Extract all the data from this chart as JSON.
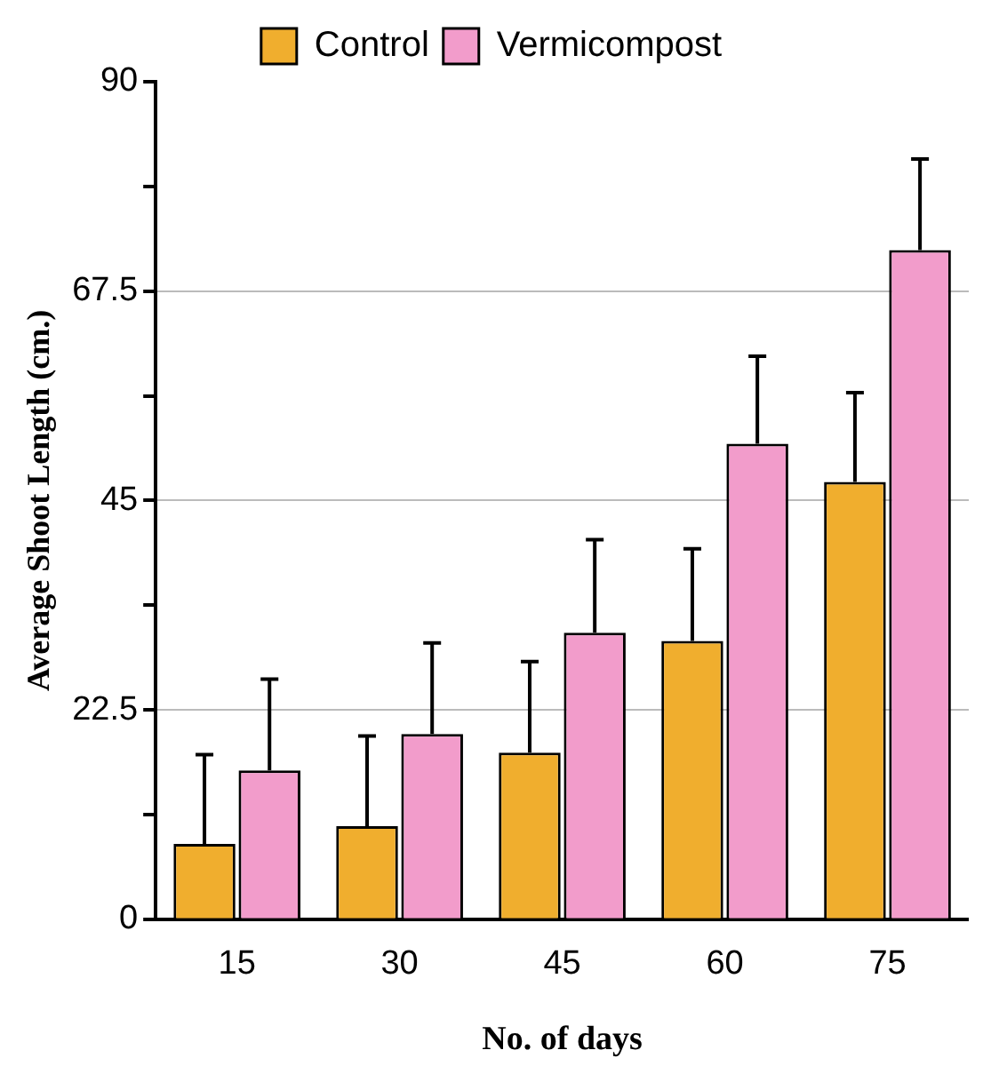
{
  "chart_data": {
    "type": "bar",
    "xlabel": "No. of days",
    "ylabel": "Average Shoot Length (cm.)",
    "categories": [
      "15",
      "30",
      "45",
      "60",
      "75"
    ],
    "series": [
      {
        "name": "Control",
        "color": "#f0ae2e",
        "values": [
          8.1,
          10,
          17.9,
          29.9,
          47
        ],
        "errors": [
          [
            8.1,
            17.7
          ],
          [
            10,
            19.7
          ],
          [
            17.9,
            27.7
          ],
          [
            29.9,
            39.8
          ],
          [
            47,
            56.6
          ]
        ]
      },
      {
        "name": "Vermicompost",
        "color": "#f29ccb",
        "values": [
          16,
          19.9,
          30.8,
          51.1,
          71.9
        ],
        "errors": [
          [
            16,
            25.8
          ],
          [
            19.9,
            29.7
          ],
          [
            30.8,
            40.8
          ],
          [
            51.1,
            60.5
          ],
          [
            71.9,
            81.7
          ]
        ]
      }
    ],
    "ylim": [
      0,
      90
    ],
    "yticks": [
      0,
      {
        "value": 11.25,
        "label": null
      },
      22.5,
      {
        "value": 33.75,
        "label": null
      },
      45,
      {
        "value": 56.25,
        "label": null
      },
      67.5,
      {
        "value": 78.75,
        "label": null
      },
      90
    ],
    "grid": "y",
    "legend": "top"
  }
}
